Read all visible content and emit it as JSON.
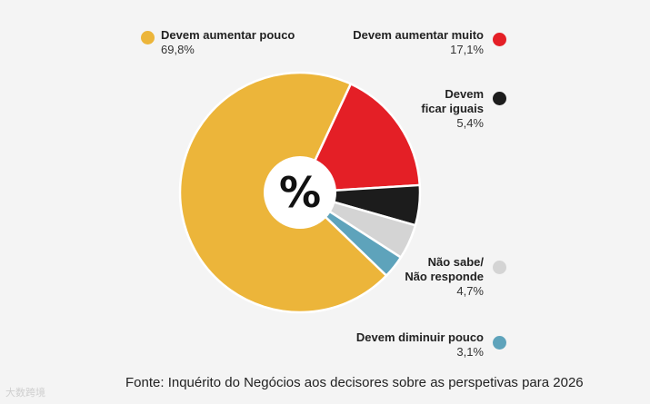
{
  "chart_data": {
    "type": "pie",
    "center_label": "%",
    "slices": [
      {
        "name": "Devem aumentar pouco",
        "name_lines": [
          "Devem aumentar pouco"
        ],
        "value": 69.8,
        "label": "69,8%",
        "color": "#ecb53a"
      },
      {
        "name": "Devem aumentar muito",
        "name_lines": [
          "Devem aumentar muito"
        ],
        "value": 17.1,
        "label": "17,1%",
        "color": "#e41f26"
      },
      {
        "name": "Devem ficar iguais",
        "name_lines": [
          "Devem",
          "ficar iguais"
        ],
        "value": 5.4,
        "label": "5,4%",
        "color": "#1c1c1c"
      },
      {
        "name": "Não sabe/ Não responde",
        "name_lines": [
          "Não sabe/",
          "Não responde"
        ],
        "value": 4.7,
        "label": "4,7%",
        "color": "#d4d4d4"
      },
      {
        "name": "Devem diminuir pouco",
        "name_lines": [
          "Devem diminuir pouco"
        ],
        "value": 3.1,
        "label": "3,1%",
        "color": "#5ea3bb"
      }
    ],
    "legend_placement": "around"
  },
  "source": "Fonte: Inquérito do Negócios aos decisores sobre as perspetivas para 2026",
  "watermark": "大数跨境"
}
